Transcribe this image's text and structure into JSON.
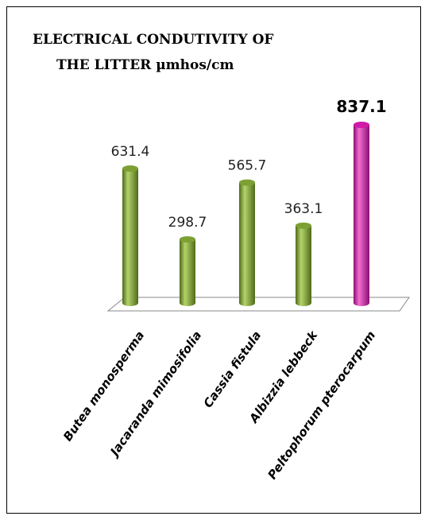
{
  "chart_data": {
    "type": "bar",
    "title_lines": [
      "ELECTRICAL CONDUTIVITY OF",
      "THE LITTER   µmhos/cm"
    ],
    "categories": [
      "Butea monosperma",
      "Jacaranda mimosifolia",
      "Cassia fistula",
      "Albizzia lebbeck",
      "Peltophorum pterocarpum"
    ],
    "values": [
      631.4,
      298.7,
      565.7,
      363.1,
      837.1
    ],
    "value_labels": [
      "631.4",
      "298.7",
      "565.7",
      "363.1",
      "837.1"
    ],
    "highlight_index": 4,
    "colors": {
      "default": "#7da035",
      "default_light": "#b5d36a",
      "default_dark": "#4e6b1a",
      "highlight": "#d01aa8",
      "highlight_light": "#f06fd2",
      "highlight_dark": "#8e0c70",
      "floor": "#ffffff",
      "floor_edge": "#888888"
    },
    "ylim": [
      0,
      900
    ],
    "grid": false,
    "legend": "none"
  }
}
